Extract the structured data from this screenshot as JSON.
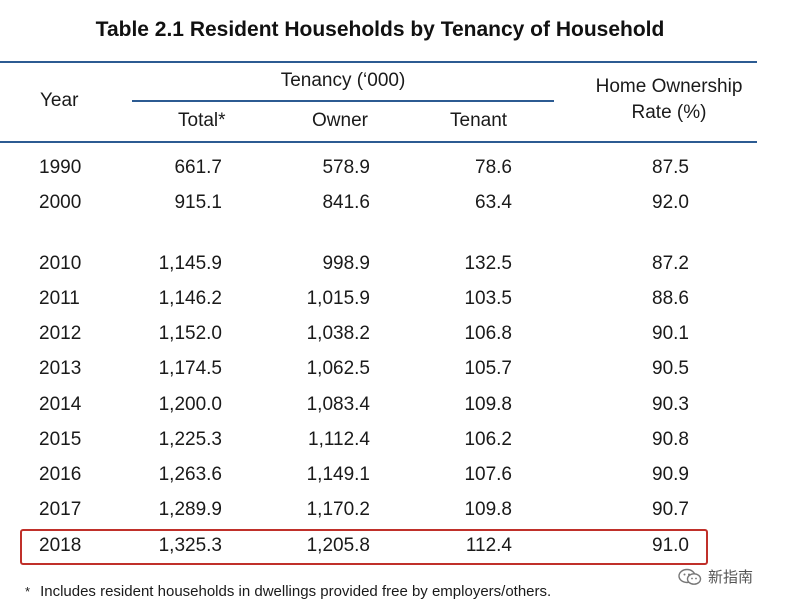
{
  "title": "Table 2.1  Resident Households by Tenancy of Household",
  "headers": {
    "year": "Year",
    "tenancy_group": "Tenancy (‘000)",
    "total": "Total*",
    "owner": "Owner",
    "tenant": "Tenant",
    "rate_line1": "Home Ownership",
    "rate_line2": "Rate (%)"
  },
  "rows": [
    {
      "year": "1990",
      "total": "661.7",
      "owner": "578.9",
      "tenant": "78.6",
      "rate": "87.5"
    },
    {
      "year": "2000",
      "total": "915.1",
      "owner": "841.6",
      "tenant": "63.4",
      "rate": "92.0"
    },
    {
      "year": "2010",
      "total": "1,145.9",
      "owner": "998.9",
      "tenant": "132.5",
      "rate": "87.2"
    },
    {
      "year": "2011",
      "total": "1,146.2",
      "owner": "1,015.9",
      "tenant": "103.5",
      "rate": "88.6"
    },
    {
      "year": "2012",
      "total": "1,152.0",
      "owner": "1,038.2",
      "tenant": "106.8",
      "rate": "90.1"
    },
    {
      "year": "2013",
      "total": "1,174.5",
      "owner": "1,062.5",
      "tenant": "105.7",
      "rate": "90.5"
    },
    {
      "year": "2014",
      "total": "1,200.0",
      "owner": "1,083.4",
      "tenant": "109.8",
      "rate": "90.3"
    },
    {
      "year": "2015",
      "total": "1,225.3",
      "owner": "1,112.4",
      "tenant": "106.2",
      "rate": "90.8"
    },
    {
      "year": "2016",
      "total": "1,263.6",
      "owner": "1,149.1",
      "tenant": "107.6",
      "rate": "90.9"
    },
    {
      "year": "2017",
      "total": "1,289.9",
      "owner": "1,170.2",
      "tenant": "109.8",
      "rate": "90.7"
    },
    {
      "year": "2018",
      "total": "1,325.3",
      "owner": "1,205.8",
      "tenant": "112.4",
      "rate": "91.0"
    }
  ],
  "footnote": {
    "marker": "*",
    "text": "Includes resident households in dwellings provided free by employers/others."
  },
  "watermark": {
    "text": "新指南",
    "icon": "wechat-icon"
  },
  "colors": {
    "rule": "#2c5b92",
    "highlight": "#c0302a"
  }
}
